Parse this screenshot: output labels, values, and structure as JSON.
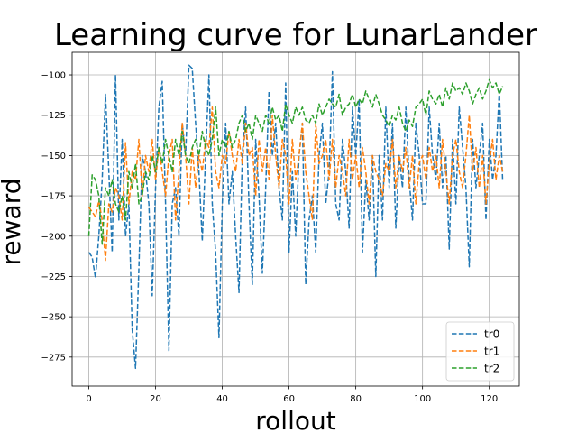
{
  "chart_data": {
    "type": "line",
    "title": "Learning curve for LunarLander",
    "xlabel": "rollout",
    "ylabel": "reward",
    "xlim": [
      -5,
      129
    ],
    "ylim": [
      -293,
      -86
    ],
    "xticks": [
      0,
      20,
      40,
      60,
      80,
      100,
      120
    ],
    "yticks": [
      -275,
      -250,
      -225,
      -200,
      -175,
      -150,
      -125,
      -100
    ],
    "grid": true,
    "legend_position": "lower right",
    "line_style": "dashed",
    "series": [
      {
        "name": "tr0",
        "color": "#1f77b4",
        "x": [
          0,
          1,
          2,
          3,
          4,
          5,
          6,
          7,
          8,
          9,
          10,
          11,
          12,
          13,
          14,
          15,
          16,
          17,
          18,
          19,
          20,
          21,
          22,
          23,
          24,
          25,
          26,
          27,
          28,
          29,
          30,
          31,
          32,
          33,
          34,
          35,
          36,
          37,
          38,
          39,
          40,
          41,
          42,
          43,
          44,
          45,
          46,
          47,
          48,
          49,
          50,
          51,
          52,
          53,
          54,
          55,
          56,
          57,
          58,
          59,
          60,
          61,
          62,
          63,
          64,
          65,
          66,
          67,
          68,
          69,
          70,
          71,
          72,
          73,
          74,
          75,
          76,
          77,
          78,
          79,
          80,
          81,
          82,
          83,
          84,
          85,
          86,
          87,
          88,
          89,
          90,
          91,
          92,
          93,
          94,
          95,
          96,
          97,
          98,
          99,
          100,
          101,
          102,
          103,
          104,
          105,
          106,
          107,
          108,
          109,
          110,
          111,
          112,
          113,
          114,
          115,
          116,
          117,
          118,
          119,
          120,
          121,
          122,
          123,
          124
        ],
        "y": [
          -210,
          -213,
          -226,
          -200,
          -165,
          -112,
          -160,
          -210,
          -100,
          -190,
          -140,
          -200,
          -180,
          -258,
          -282,
          -220,
          -150,
          -160,
          -180,
          -237,
          -170,
          -120,
          -104,
          -180,
          -271,
          -180,
          -170,
          -200,
          -130,
          -150,
          -94,
          -96,
          -130,
          -160,
          -203,
          -150,
          -100,
          -180,
          -210,
          -263,
          -180,
          -130,
          -180,
          -160,
          -200,
          -235,
          -150,
          -120,
          -180,
          -230,
          -140,
          -175,
          -223,
          -170,
          -110,
          -150,
          -130,
          -170,
          -190,
          -105,
          -210,
          -160,
          -200,
          -150,
          -130,
          -230,
          -190,
          -175,
          -210,
          -150,
          -130,
          -180,
          -160,
          -98,
          -180,
          -190,
          -140,
          -160,
          -195,
          -120,
          -150,
          -115,
          -210,
          -165,
          -190,
          -150,
          -225,
          -150,
          -190,
          -120,
          -170,
          -130,
          -195,
          -150,
          -170,
          -120,
          -165,
          -190,
          -130,
          -150,
          -180,
          -180,
          -120,
          -150,
          -165,
          -130,
          -170,
          -150,
          -208,
          -140,
          -180,
          -120,
          -145,
          -170,
          -219,
          -140,
          -170,
          -150,
          -130,
          -190,
          -140,
          -165,
          -150,
          -110,
          -165
        ]
      },
      {
        "name": "tr1",
        "color": "#ff7f0e",
        "x": [
          0,
          1,
          2,
          3,
          4,
          5,
          6,
          7,
          8,
          9,
          10,
          11,
          12,
          13,
          14,
          15,
          16,
          17,
          18,
          19,
          20,
          21,
          22,
          23,
          24,
          25,
          26,
          27,
          28,
          29,
          30,
          31,
          32,
          33,
          34,
          35,
          36,
          37,
          38,
          39,
          40,
          41,
          42,
          43,
          44,
          45,
          46,
          47,
          48,
          49,
          50,
          51,
          52,
          53,
          54,
          55,
          56,
          57,
          58,
          59,
          60,
          61,
          62,
          63,
          64,
          65,
          66,
          67,
          68,
          69,
          70,
          71,
          72,
          73,
          74,
          75,
          76,
          77,
          78,
          79,
          80,
          81,
          82,
          83,
          84,
          85,
          86,
          87,
          88,
          89,
          90,
          91,
          92,
          93,
          94,
          95,
          96,
          97,
          98,
          99,
          100,
          101,
          102,
          103,
          104,
          105,
          106,
          107,
          108,
          109,
          110,
          111,
          112,
          113,
          114,
          115,
          116,
          117,
          118,
          119,
          120,
          121,
          122,
          123,
          124
        ],
        "y": [
          -182,
          -185,
          -188,
          -178,
          -190,
          -215,
          -180,
          -185,
          -170,
          -175,
          -190,
          -142,
          -180,
          -160,
          -165,
          -140,
          -175,
          -150,
          -160,
          -140,
          -165,
          -145,
          -160,
          -175,
          -150,
          -140,
          -190,
          -160,
          -130,
          -150,
          -180,
          -145,
          -170,
          -150,
          -160,
          -140,
          -145,
          -120,
          -160,
          -170,
          -150,
          -155,
          -135,
          -150,
          -160,
          -140,
          -155,
          -130,
          -150,
          -145,
          -175,
          -140,
          -160,
          -145,
          -165,
          -125,
          -150,
          -170,
          -140,
          -150,
          -180,
          -140,
          -165,
          -150,
          -130,
          -160,
          -175,
          -190,
          -130,
          -155,
          -150,
          -140,
          -165,
          -140,
          -170,
          -150,
          -160,
          -175,
          -140,
          -165,
          -150,
          -170,
          -145,
          -160,
          -180,
          -150,
          -160,
          -165,
          -175,
          -155,
          -160,
          -140,
          -170,
          -150,
          -160,
          -145,
          -170,
          -150,
          -180,
          -155,
          -150,
          -165,
          -145,
          -160,
          -150,
          -170,
          -140,
          -160,
          -180,
          -150,
          -140,
          -160,
          -170,
          -150,
          -125,
          -160,
          -145,
          -170,
          -150,
          -180,
          -155,
          -140,
          -165,
          -150,
          -160
        ]
      },
      {
        "name": "tr2",
        "color": "#2ca02c",
        "x": [
          0,
          1,
          2,
          3,
          4,
          5,
          6,
          7,
          8,
          9,
          10,
          11,
          12,
          13,
          14,
          15,
          16,
          17,
          18,
          19,
          20,
          21,
          22,
          23,
          24,
          25,
          26,
          27,
          28,
          29,
          30,
          31,
          32,
          33,
          34,
          35,
          36,
          37,
          38,
          39,
          40,
          41,
          42,
          43,
          44,
          45,
          46,
          47,
          48,
          49,
          50,
          51,
          52,
          53,
          54,
          55,
          56,
          57,
          58,
          59,
          60,
          61,
          62,
          63,
          64,
          65,
          66,
          67,
          68,
          69,
          70,
          71,
          72,
          73,
          74,
          75,
          76,
          77,
          78,
          79,
          80,
          81,
          82,
          83,
          84,
          85,
          86,
          87,
          88,
          89,
          90,
          91,
          92,
          93,
          94,
          95,
          96,
          97,
          98,
          99,
          100,
          101,
          102,
          103,
          104,
          105,
          106,
          107,
          108,
          109,
          110,
          111,
          112,
          113,
          114,
          115,
          116,
          117,
          118,
          119,
          120,
          121,
          122,
          123,
          124
        ],
        "y": [
          -200,
          -162,
          -165,
          -175,
          -205,
          -170,
          -175,
          -165,
          -180,
          -185,
          -175,
          -190,
          -160,
          -170,
          -155,
          -180,
          -175,
          -160,
          -165,
          -150,
          -160,
          -145,
          -155,
          -140,
          -150,
          -160,
          -140,
          -150,
          -135,
          -150,
          -155,
          -145,
          -140,
          -150,
          -135,
          -145,
          -150,
          -140,
          -120,
          -150,
          -140,
          -145,
          -135,
          -145,
          -140,
          -130,
          -125,
          -135,
          -130,
          -140,
          -125,
          -130,
          -135,
          -125,
          -130,
          -120,
          -128,
          -125,
          -135,
          -118,
          -125,
          -130,
          -120,
          -125,
          -120,
          -128,
          -130,
          -125,
          -130,
          -118,
          -125,
          -120,
          -115,
          -118,
          -120,
          -112,
          -125,
          -120,
          -118,
          -112,
          -120,
          -115,
          -118,
          -110,
          -115,
          -120,
          -112,
          -118,
          -125,
          -128,
          -132,
          -125,
          -128,
          -120,
          -130,
          -135,
          -128,
          -132,
          -120,
          -118,
          -115,
          -125,
          -110,
          -115,
          -118,
          -112,
          -120,
          -108,
          -115,
          -105,
          -110,
          -108,
          -112,
          -105,
          -110,
          -118,
          -112,
          -108,
          -115,
          -110,
          -103,
          -108,
          -105,
          -112,
          -107
        ]
      }
    ]
  }
}
